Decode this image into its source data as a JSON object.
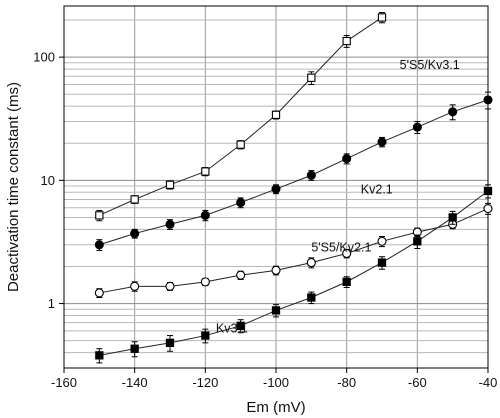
{
  "chart_data": {
    "type": "line",
    "title": "",
    "xlabel": "Em (mV)",
    "ylabel": "Deactivation time constant (ms)",
    "y_scale": "log",
    "xlim": [
      -160,
      -40
    ],
    "ylim": [
      0.3,
      260
    ],
    "grid": true,
    "x_ticks": [
      -160,
      -140,
      -120,
      -100,
      -80,
      -60,
      -40
    ],
    "y_ticks": [
      1,
      10,
      100
    ],
    "series": [
      {
        "name": "5'S5/Kv3.1",
        "marker": "open-square",
        "label_at": [
          -65,
          80
        ],
        "x": [
          -150,
          -140,
          -130,
          -120,
          -110,
          -100,
          -90,
          -80,
          -70
        ],
        "y": [
          5.2,
          7.0,
          9.2,
          11.8,
          19.5,
          34.0,
          68.0,
          135.0,
          210.0
        ],
        "err": [
          0.5,
          0.5,
          0.7,
          0.9,
          1.5,
          2.5,
          8.0,
          15.0,
          20.0
        ]
      },
      {
        "name": "Kv2.1",
        "marker": "filled-circle",
        "label_at": [
          -76,
          7.8
        ],
        "x": [
          -150,
          -140,
          -130,
          -120,
          -110,
          -100,
          -90,
          -80,
          -70,
          -60,
          -50,
          -40
        ],
        "y": [
          3.0,
          3.7,
          4.4,
          5.2,
          6.6,
          8.5,
          11.0,
          15.0,
          20.5,
          27.0,
          36.0,
          45.0
        ],
        "err": [
          0.3,
          0.3,
          0.4,
          0.5,
          0.6,
          0.7,
          1.0,
          1.4,
          1.8,
          3.0,
          5.0,
          7.0
        ]
      },
      {
        "name": "5'S5/Kv2.1",
        "marker": "open-circle",
        "label_at": [
          -90,
          2.65
        ],
        "x": [
          -150,
          -140,
          -130,
          -120,
          -110,
          -100,
          -90,
          -80,
          -70,
          -60,
          -50,
          -40
        ],
        "y": [
          1.22,
          1.38,
          1.38,
          1.5,
          1.7,
          1.86,
          2.15,
          2.55,
          3.2,
          3.8,
          4.4,
          5.9
        ],
        "err": [
          0.1,
          0.12,
          0.1,
          0.1,
          0.13,
          0.15,
          0.2,
          0.2,
          0.3,
          0.3,
          0.35,
          0.6
        ]
      },
      {
        "name": "Kv3.1",
        "marker": "filled-square",
        "label_at": [
          -117,
          0.58
        ],
        "x": [
          -150,
          -140,
          -130,
          -120,
          -110,
          -100,
          -90,
          -80,
          -70,
          -60,
          -50,
          -40
        ],
        "y": [
          0.38,
          0.43,
          0.48,
          0.55,
          0.66,
          0.88,
          1.12,
          1.5,
          2.15,
          3.2,
          5.0,
          8.2
        ],
        "err": [
          0.05,
          0.06,
          0.07,
          0.07,
          0.08,
          0.1,
          0.12,
          0.15,
          0.25,
          0.4,
          0.6,
          1.0
        ]
      }
    ]
  }
}
